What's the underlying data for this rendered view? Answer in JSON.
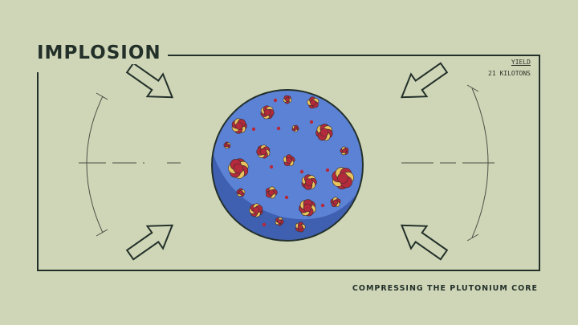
{
  "title": "IMPLOSION",
  "yield": {
    "label": "YIELD",
    "value": "21 KILOTONS"
  },
  "caption": "COMPRESSING THE PLUTONIUM CORE",
  "colors": {
    "background": "#cfd6b7",
    "ink": "#23302a",
    "core": "#5c82d6",
    "core_shadow": "#3f5fb0",
    "nucleus_red": "#b32a3c",
    "nucleus_yellow": "#e9c35c"
  },
  "arrows": [
    {
      "name": "arrow-top-left",
      "direction": "down-right"
    },
    {
      "name": "arrow-top-right",
      "direction": "down-left"
    },
    {
      "name": "arrow-bottom-left",
      "direction": "up-right"
    },
    {
      "name": "arrow-bottom-right",
      "direction": "up-left"
    }
  ]
}
